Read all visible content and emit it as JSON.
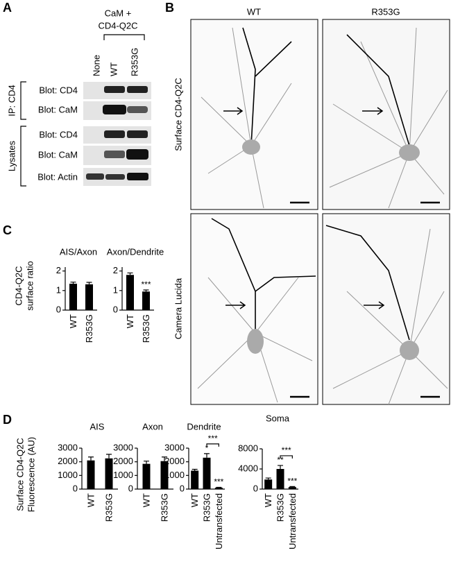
{
  "panel_a": {
    "label": "A",
    "header": [
      "CaM +",
      "CD4-Q2C"
    ],
    "lanes": [
      "None",
      "WT",
      "R353G"
    ],
    "groups": [
      {
        "name": "IP: CD4",
        "blots": [
          "Blot: CD4",
          "Blot: CaM"
        ]
      },
      {
        "name": "Lysates",
        "blots": [
          "Blot: CD4",
          "Blot: CaM",
          "Blot: Actin"
        ]
      }
    ]
  },
  "panel_b": {
    "label": "B",
    "columns": [
      "WT",
      "R353G"
    ],
    "rows": [
      "Surface CD4-Q2C",
      "Camera Lucida"
    ]
  },
  "panel_c": {
    "label": "C",
    "ylabel": [
      "CD4-Q2C",
      "surface ratio"
    ]
  },
  "panel_d": {
    "label": "D",
    "ylabel": [
      "Surface CD4-Q2C",
      "Fluorescence (AU)"
    ]
  },
  "chart_data": [
    {
      "type": "bar",
      "title": "AIS/Axon",
      "categories": [
        "WT",
        "R353G"
      ],
      "values": [
        1.35,
        1.32
      ],
      "errors": [
        0.08,
        0.1
      ],
      "color": "#000000",
      "ylim": [
        0,
        2.2
      ],
      "yticks": [
        0,
        1,
        2
      ]
    },
    {
      "type": "bar",
      "title": "Axon/Dendrite",
      "categories": [
        "WT",
        "R353G"
      ],
      "values": [
        1.8,
        0.95
      ],
      "errors": [
        0.1,
        0.08
      ],
      "color": "#000000",
      "annotations": [
        null,
        "***"
      ],
      "ylim": [
        0,
        2.2
      ],
      "yticks": [
        0,
        1,
        2
      ]
    },
    {
      "type": "bar",
      "title": "AIS",
      "categories": [
        "WT",
        "R353G"
      ],
      "values": [
        2100,
        2250
      ],
      "errors": [
        250,
        300
      ],
      "color": "#000000",
      "ylim": [
        0,
        3000
      ],
      "yticks": [
        0,
        1000,
        2000,
        3000
      ]
    },
    {
      "type": "bar",
      "title": "Axon",
      "categories": [
        "WT",
        "R353G"
      ],
      "values": [
        1850,
        2050
      ],
      "errors": [
        200,
        300
      ],
      "color": "#000000",
      "ylim": [
        0,
        3000
      ],
      "yticks": [
        0,
        1000,
        2000,
        3000
      ]
    },
    {
      "type": "bar",
      "title": "Dendrite",
      "categories": [
        "WT",
        "R353G",
        "Untransfected"
      ],
      "values": [
        1350,
        2300,
        100
      ],
      "errors": [
        100,
        300,
        30
      ],
      "color": "#000000",
      "annotations": [
        null,
        "*",
        "***"
      ],
      "bracket_label": "***",
      "ylim": [
        0,
        3000
      ],
      "yticks": [
        0,
        1000,
        2000,
        3000
      ]
    },
    {
      "type": "bar",
      "title": "Soma",
      "categories": [
        "WT",
        "R353G",
        "Untransfected"
      ],
      "values": [
        1900,
        4000,
        400
      ],
      "errors": [
        300,
        700,
        100
      ],
      "color": "#000000",
      "annotations": [
        null,
        "**",
        "***"
      ],
      "bracket_label": "***",
      "ylim": [
        0,
        8000
      ],
      "yticks": [
        0,
        4000,
        8000
      ]
    }
  ]
}
